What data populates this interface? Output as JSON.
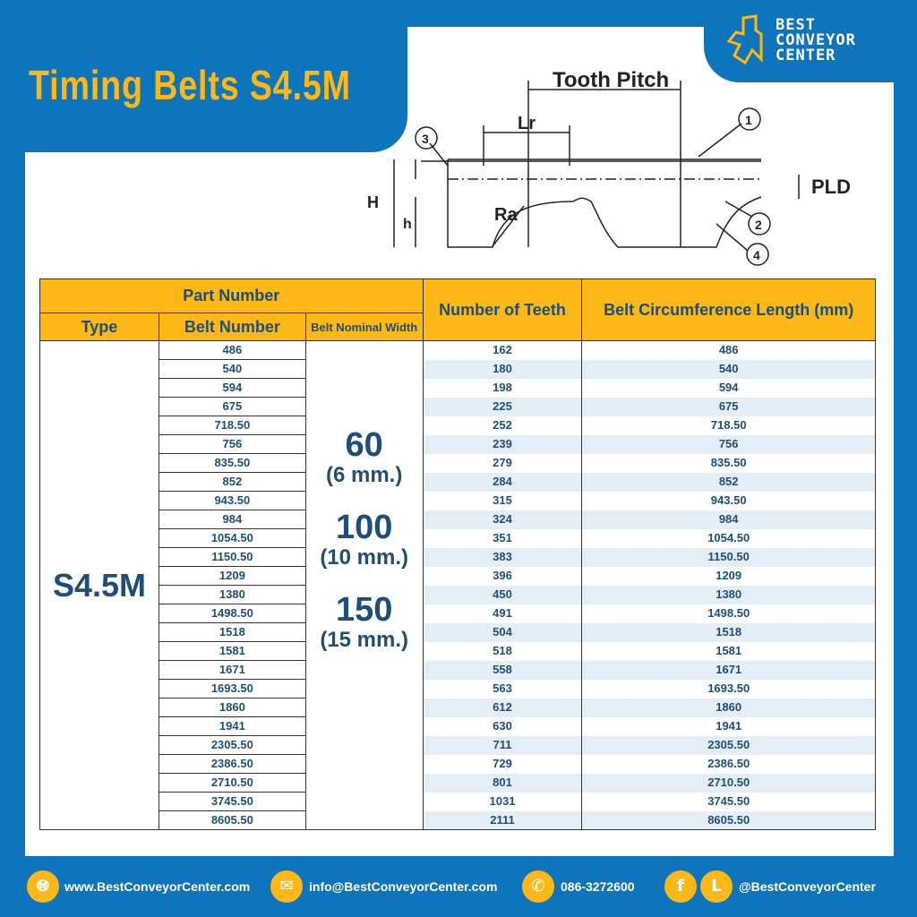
{
  "title": "Timing Belts S4.5M",
  "logo": {
    "line1": "BEST",
    "line2": "CONVEYOR",
    "line3": "CENTER"
  },
  "diagram": {
    "tooth_pitch": "Tooth Pitch",
    "lr": "Lr",
    "pld": "PLD",
    "H": "H",
    "h": "h",
    "ra": "Ra",
    "callouts": [
      "1",
      "2",
      "3",
      "4"
    ]
  },
  "table": {
    "headers": {
      "part_number": "Part Number",
      "type": "Type",
      "belt_number": "Belt Number",
      "belt_width": "Belt Nominal Width",
      "teeth": "Number of Teeth",
      "length": "Belt Circumference Length (mm)"
    },
    "type": "S4.5M",
    "widths": [
      {
        "value": "60",
        "mm": "(6 mm.)"
      },
      {
        "value": "100",
        "mm": "(10 mm.)"
      },
      {
        "value": "150",
        "mm": "(15 mm.)"
      }
    ],
    "rows": [
      [
        "486",
        "162",
        "486"
      ],
      [
        "540",
        "180",
        "540"
      ],
      [
        "594",
        "198",
        "594"
      ],
      [
        "675",
        "225",
        "675"
      ],
      [
        "718.50",
        "252",
        "718.50"
      ],
      [
        "756",
        "239",
        "756"
      ],
      [
        "835.50",
        "279",
        "835.50"
      ],
      [
        "852",
        "284",
        "852"
      ],
      [
        "943.50",
        "315",
        "943.50"
      ],
      [
        "984",
        "324",
        "984"
      ],
      [
        "1054.50",
        "351",
        "1054.50"
      ],
      [
        "1150.50",
        "383",
        "1150.50"
      ],
      [
        "1209",
        "396",
        "1209"
      ],
      [
        "1380",
        "450",
        "1380"
      ],
      [
        "1498.50",
        "491",
        "1498.50"
      ],
      [
        "1518",
        "504",
        "1518"
      ],
      [
        "1581",
        "518",
        "1581"
      ],
      [
        "1671",
        "558",
        "1671"
      ],
      [
        "1693.50",
        "563",
        "1693.50"
      ],
      [
        "1860",
        "612",
        "1860"
      ],
      [
        "1941",
        "630",
        "1941"
      ],
      [
        "2305.50",
        "711",
        "2305.50"
      ],
      [
        "2386.50",
        "729",
        "2386.50"
      ],
      [
        "2710.50",
        "801",
        "2710.50"
      ],
      [
        "3745.50",
        "1031",
        "3745.50"
      ],
      [
        "8605.50",
        "2111",
        "8605.50"
      ]
    ]
  },
  "footer": {
    "website": "www.BestConveyorCenter.com",
    "email": "info@BestConveyorCenter.com",
    "phone": "086-3272600",
    "social": "@BestConveyorCenter"
  },
  "colors": {
    "brand_blue": "#0e74bc",
    "accent_yellow": "#fbb817",
    "text_navy": "#1f4e79"
  }
}
